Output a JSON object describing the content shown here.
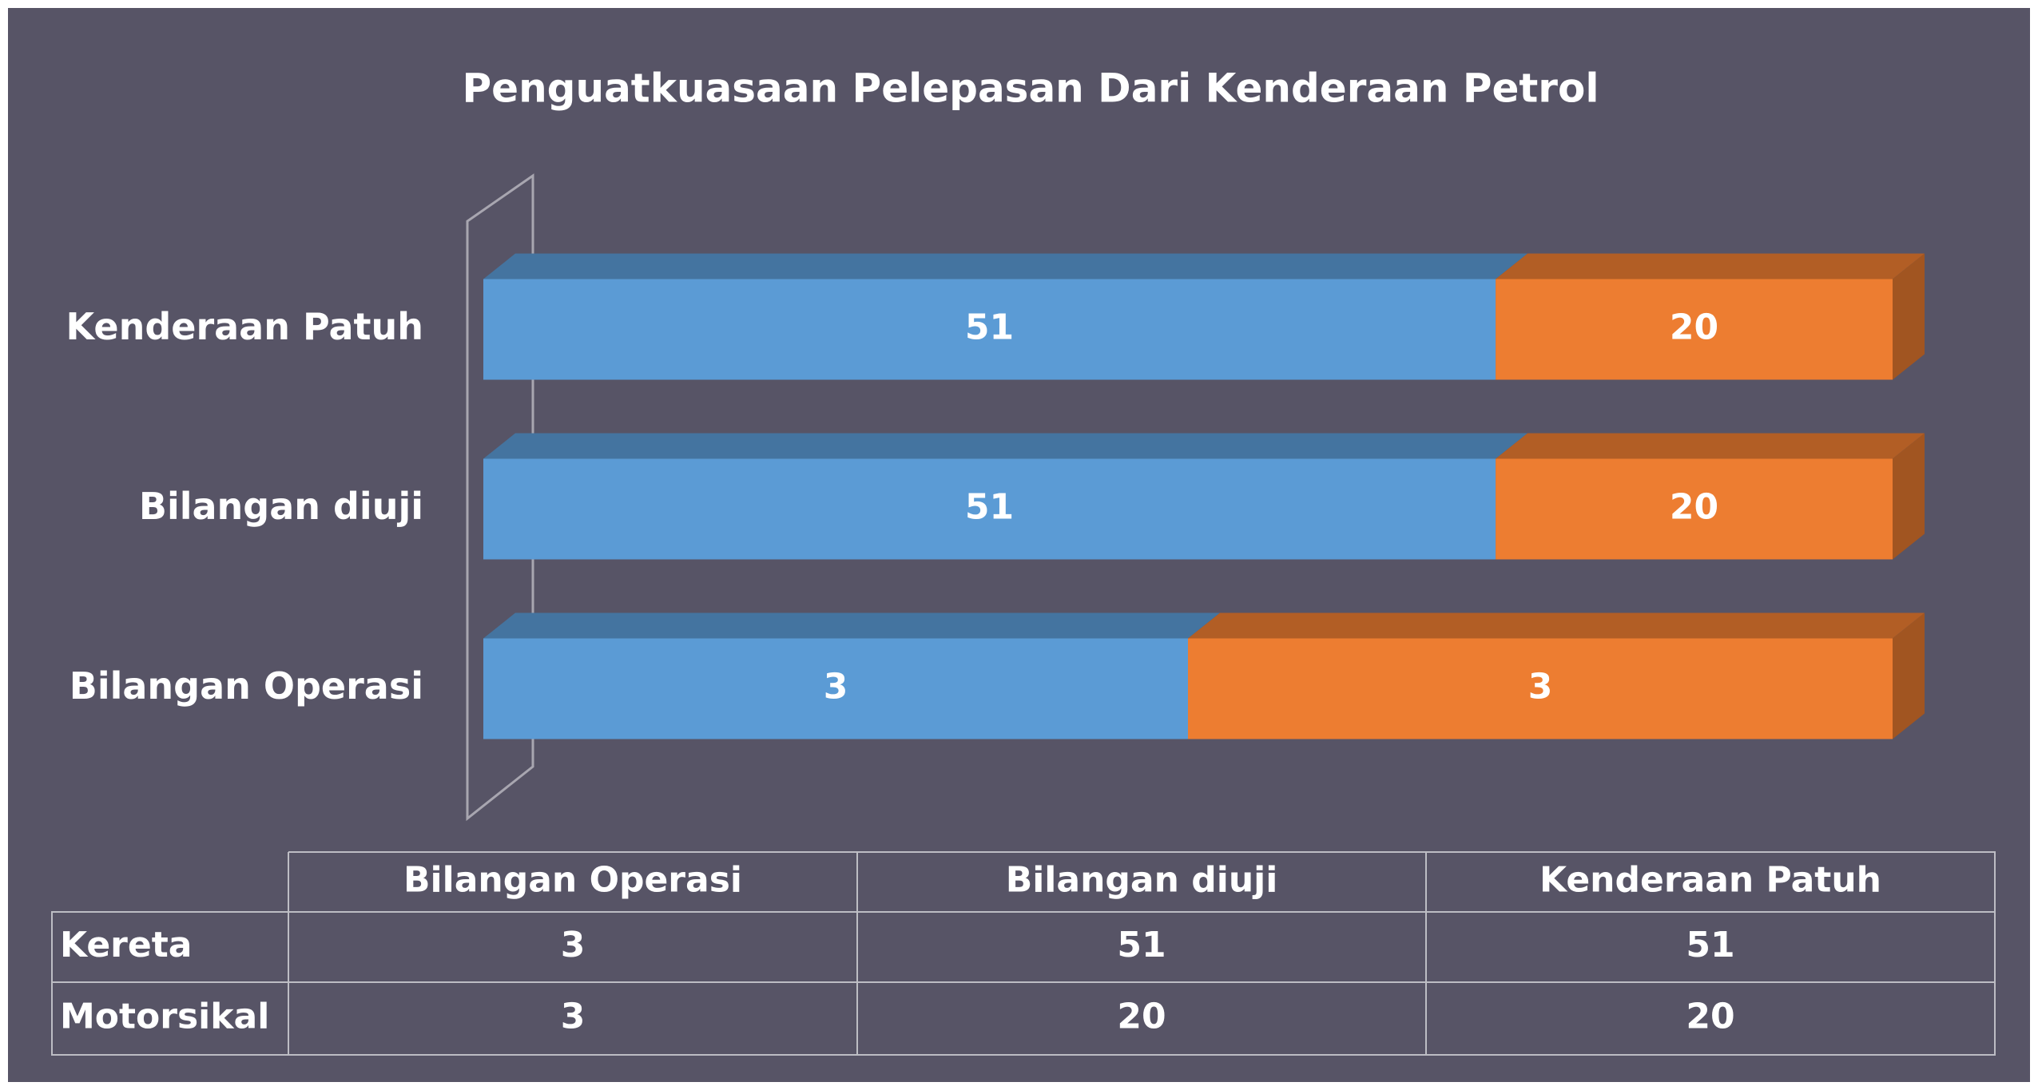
{
  "chart_data": {
    "type": "bar",
    "stacking": "percent",
    "orientation": "horizontal",
    "title": "Penguatkuasaan Pelepasan Dari Kenderaan Petrol",
    "categories": [
      "Bilangan Operasi",
      "Bilangan diuji",
      "Kenderaan Patuh"
    ],
    "series": [
      {
        "name": "Kereta",
        "color": "#5b9bd5",
        "values": [
          3,
          51,
          51
        ]
      },
      {
        "name": "Motorsikal",
        "color": "#ed7d31",
        "values": [
          3,
          20,
          20
        ]
      }
    ],
    "data_table": true
  }
}
